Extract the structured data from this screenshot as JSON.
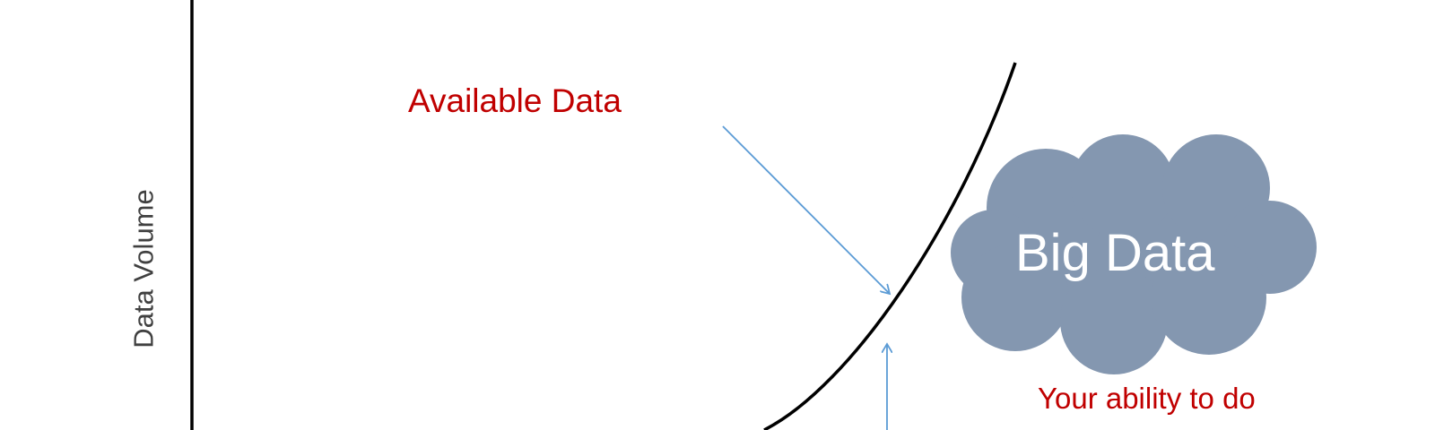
{
  "diagram": {
    "y_axis_label": "Data Volume",
    "available_data_label": "Available Data",
    "big_data_label": "Big Data",
    "ability_label": "Your ability to do",
    "colors": {
      "axis": "#000000",
      "curve": "#000000",
      "arrow": "#5b9bd5",
      "callout_text": "#c00000",
      "cloud_fill": "#8497b0",
      "cloud_text": "#ffffff",
      "axis_label_text": "#404040"
    }
  }
}
